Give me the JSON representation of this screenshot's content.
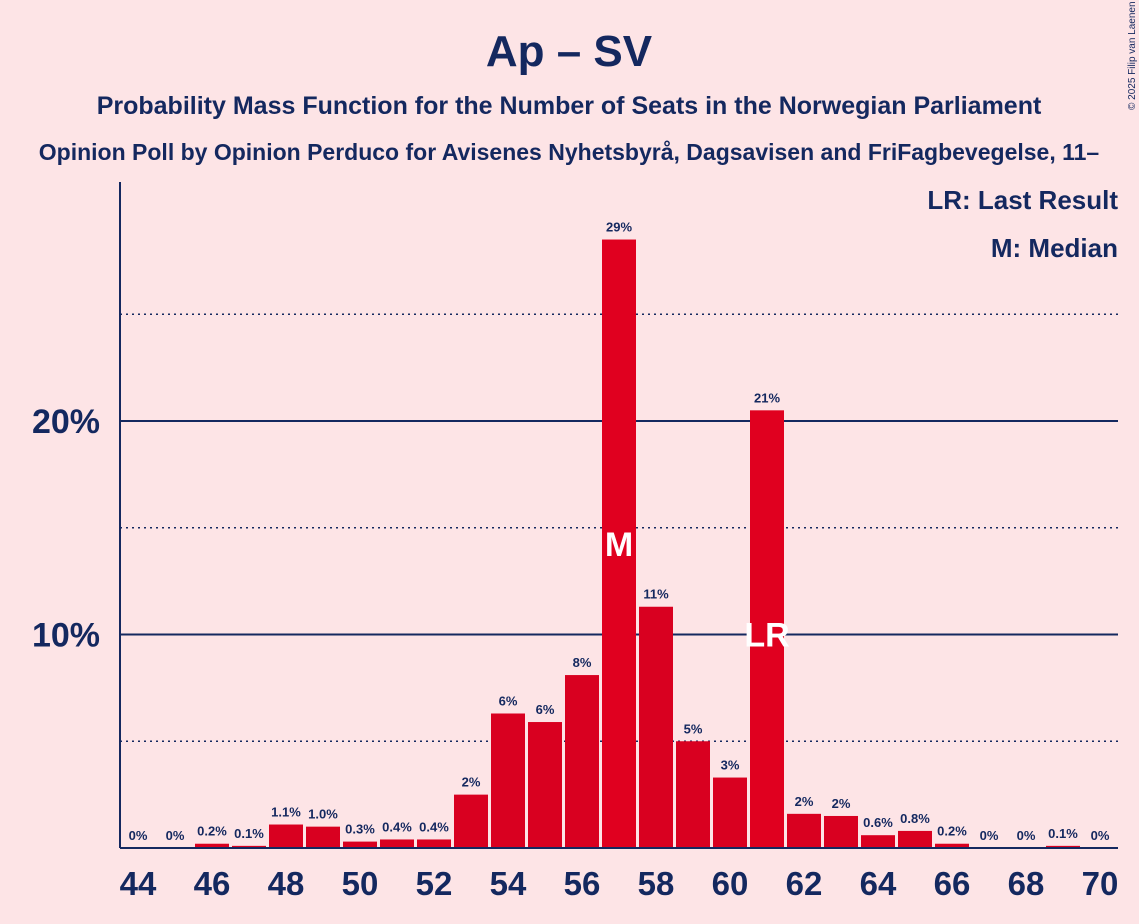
{
  "title": "Ap – SV",
  "subtitle": "Probability Mass Function for the Number of Seats in the Norwegian Parliament",
  "subsubtitle": "Opinion Poll by Opinion Perduco for Avisenes Nyhetsbyrå, Dagsavisen and FriFagbevegelse, 11–",
  "copyright": "© 2025 Filip van Laenen",
  "legend": {
    "lr": "LR: Last Result",
    "m": "M: Median"
  },
  "colors": {
    "bar": "#E0001F",
    "bar_dark": "#D90020",
    "background": "#FDE4E6",
    "text": "#14285F"
  },
  "chart_data": {
    "type": "bar",
    "categories": [
      44,
      45,
      46,
      47,
      48,
      49,
      50,
      51,
      52,
      53,
      54,
      55,
      56,
      57,
      58,
      59,
      60,
      61,
      62,
      63,
      64,
      65,
      66,
      67,
      68,
      69,
      70
    ],
    "values": [
      0,
      0,
      0.2,
      0.1,
      1.1,
      1.0,
      0.3,
      0.4,
      0.4,
      2.5,
      6.3,
      5.9,
      8.1,
      28.5,
      11.3,
      5.0,
      3.3,
      20.5,
      1.6,
      1.5,
      0.6,
      0.8,
      0.2,
      0,
      0,
      0.1,
      0
    ],
    "data_labels": [
      "0%",
      "0%",
      "0.2%",
      "0.1%",
      "1.1%",
      "1.0%",
      "0.3%",
      "0.4%",
      "0.4%",
      "2%",
      "6%",
      "6%",
      "8%",
      "29%",
      "11%",
      "5%",
      "3%",
      "21%",
      "2%",
      "2%",
      "0.6%",
      "0.8%",
      "0.2%",
      "0%",
      "0%",
      "0.1%",
      "0%"
    ],
    "x_tick_labels": [
      "44",
      "46",
      "48",
      "50",
      "52",
      "54",
      "56",
      "58",
      "60",
      "62",
      "64",
      "66",
      "68",
      "70"
    ],
    "y_tick_labels": [
      "10%",
      "20%"
    ],
    "ylim": [
      0,
      30
    ],
    "gridlines_solid": [
      10,
      20
    ],
    "gridlines_dotted": [
      5,
      15,
      25
    ],
    "median_seat": 57,
    "median_label": "M",
    "last_result_seat": 61,
    "last_result_label": "LR",
    "legend_position": "top-right"
  }
}
